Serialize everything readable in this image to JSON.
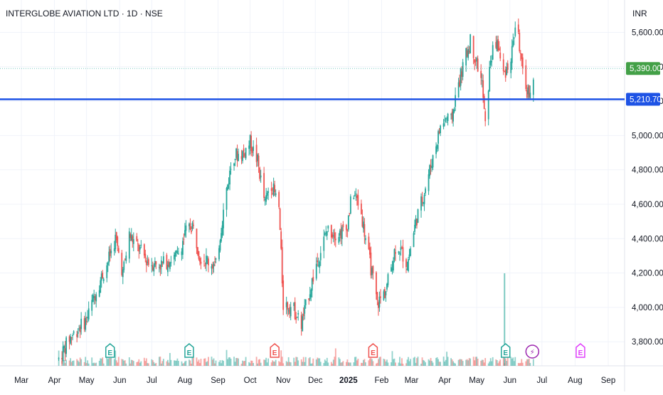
{
  "header": {
    "symbol_title": "INTERGLOBE AVIATION LTD · 1D · NSE",
    "currency": "INR"
  },
  "colors": {
    "up": "#26a69a",
    "down": "#ef5350",
    "last_price_tag": "#43a047",
    "horizontal_line": "#1e53e5",
    "grid": "#f0f3fa",
    "earnings_past": "#26a69a",
    "earnings_negative": "#ef5350",
    "earnings_future": "#e040fb",
    "dividend_marker": "#9c27b0"
  },
  "chart_data": {
    "type": "candlestick",
    "y_range": [
      3660,
      5780
    ],
    "y_ticks": [
      "5,600.00",
      "5,400.00",
      "5,200.00",
      "5,000.00",
      "4,800.00",
      "4,600.00",
      "4,400.00",
      "4,200.00",
      "4,000.00",
      "3,800.00"
    ],
    "y_tick_values": [
      5600,
      5400,
      5200,
      5000,
      4800,
      4600,
      4400,
      4200,
      4000,
      3800
    ],
    "x_ticks": [
      "Mar",
      "Apr",
      "May",
      "Jun",
      "Jul",
      "Aug",
      "Sep",
      "Oct",
      "Nov",
      "Dec",
      "2025",
      "Feb",
      "Mar",
      "Apr",
      "May",
      "Jun",
      "Jul",
      "Aug",
      "Sep"
    ],
    "x_ticks_bold": [
      false,
      false,
      false,
      false,
      false,
      false,
      false,
      false,
      false,
      false,
      true,
      false,
      false,
      false,
      false,
      false,
      false,
      false,
      false
    ],
    "x_tick_dates": [
      "2024-03-01",
      "2024-04-01",
      "2024-05-01",
      "2024-06-01",
      "2024-07-01",
      "2024-08-01",
      "2024-09-01",
      "2024-10-01",
      "2024-11-01",
      "2024-12-01",
      "2025-01-01",
      "2025-02-01",
      "2025-03-01",
      "2025-04-01",
      "2025-05-01",
      "2025-06-01",
      "2025-07-01",
      "2025-08-01",
      "2025-09-01"
    ],
    "last_price": "5,390.00",
    "last_price_value": 5390,
    "horizontal_line": "5,210.70",
    "horizontal_line_value": 5210.7,
    "price_anchors": [
      [
        "2024-04-05",
        3700
      ],
      [
        "2024-04-15",
        3820
      ],
      [
        "2024-05-01",
        3930
      ],
      [
        "2024-05-10",
        4100
      ],
      [
        "2024-05-20",
        4250
      ],
      [
        "2024-05-28",
        4400
      ],
      [
        "2024-06-04",
        4200
      ],
      [
        "2024-06-10",
        4420
      ],
      [
        "2024-06-18",
        4350
      ],
      [
        "2024-06-28",
        4260
      ],
      [
        "2024-07-10",
        4250
      ],
      [
        "2024-07-25",
        4300
      ],
      [
        "2024-08-02",
        4440
      ],
      [
        "2024-08-08",
        4480
      ],
      [
        "2024-08-15",
        4300
      ],
      [
        "2024-08-30",
        4240
      ],
      [
        "2024-09-08",
        4650
      ],
      [
        "2024-09-15",
        4880
      ],
      [
        "2024-09-25",
        4900
      ],
      [
        "2024-10-01",
        4960
      ],
      [
        "2024-10-08",
        4850
      ],
      [
        "2024-10-15",
        4600
      ],
      [
        "2024-10-20",
        4740
      ],
      [
        "2024-10-28",
        4580
      ],
      [
        "2024-11-01",
        4020
      ],
      [
        "2024-11-10",
        4000
      ],
      [
        "2024-11-18",
        3900
      ],
      [
        "2024-11-25",
        4080
      ],
      [
        "2024-12-02",
        4250
      ],
      [
        "2024-12-12",
        4450
      ],
      [
        "2024-12-22",
        4430
      ],
      [
        "2024-12-30",
        4450
      ],
      [
        "2025-01-05",
        4680
      ],
      [
        "2025-01-12",
        4580
      ],
      [
        "2025-01-20",
        4300
      ],
      [
        "2025-01-28",
        4020
      ],
      [
        "2025-02-05",
        4100
      ],
      [
        "2025-02-15",
        4380
      ],
      [
        "2025-02-25",
        4250
      ],
      [
        "2025-03-05",
        4500
      ],
      [
        "2025-03-12",
        4650
      ],
      [
        "2025-03-20",
        4850
      ],
      [
        "2025-03-28",
        5050
      ],
      [
        "2025-04-02",
        5100
      ],
      [
        "2025-04-07",
        5080
      ],
      [
        "2025-04-12",
        5250
      ],
      [
        "2025-04-18",
        5400
      ],
      [
        "2025-04-25",
        5550
      ],
      [
        "2025-05-02",
        5400
      ],
      [
        "2025-05-06",
        5300
      ],
      [
        "2025-05-09",
        5050
      ],
      [
        "2025-05-14",
        5450
      ],
      [
        "2025-05-20",
        5550
      ],
      [
        "2025-05-26",
        5350
      ],
      [
        "2025-06-02",
        5450
      ],
      [
        "2025-06-07",
        5680
      ],
      [
        "2025-06-10",
        5520
      ],
      [
        "2025-06-14",
        5290
      ],
      [
        "2025-06-18",
        5250
      ],
      [
        "2025-06-23",
        5300
      ]
    ],
    "event_markers": [
      {
        "label": "E",
        "date": "2024-05-23",
        "kind": "earnings_past"
      },
      {
        "label": "E",
        "date": "2024-08-05",
        "kind": "earnings_past"
      },
      {
        "label": "E",
        "date": "2024-10-24",
        "kind": "earnings_negative"
      },
      {
        "label": "E",
        "date": "2025-01-24",
        "kind": "earnings_negative"
      },
      {
        "label": "E",
        "date": "2025-05-28",
        "kind": "earnings_past"
      },
      {
        "label": "⚡",
        "date": "2025-06-22",
        "kind": "dividend"
      },
      {
        "label": "E",
        "date": "2025-08-06",
        "kind": "earnings_future"
      }
    ]
  }
}
